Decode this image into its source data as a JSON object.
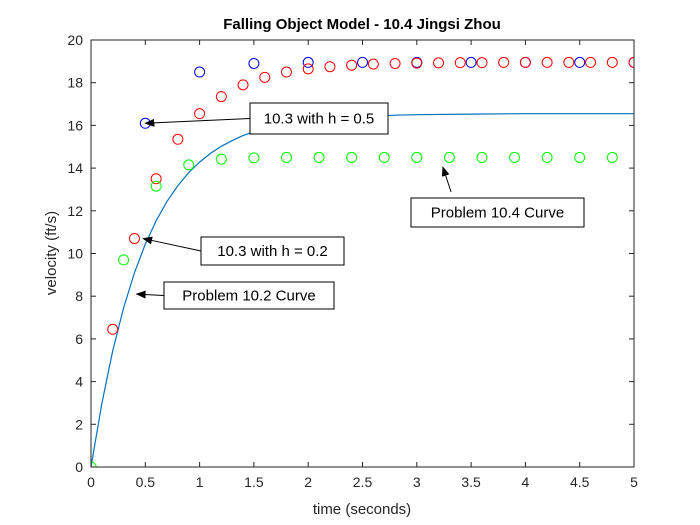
{
  "chart_data": {
    "type": "scatter",
    "title": "Falling Object Model - 10.4 Jingsi Zhou",
    "xlabel": "time (seconds)",
    "ylabel": "velocity (ft/s)",
    "xlim": [
      0,
      5
    ],
    "ylim": [
      0,
      20
    ],
    "xticks": [
      0,
      0.5,
      1,
      1.5,
      2,
      2.5,
      3,
      3.5,
      4,
      4.5,
      5
    ],
    "xtick_labels": [
      "0",
      "0.5",
      "1",
      "1.5",
      "2",
      "2.5",
      "3",
      "3.5",
      "4",
      "4.5",
      "5"
    ],
    "yticks": [
      0,
      2,
      4,
      6,
      8,
      10,
      12,
      14,
      16,
      18,
      20
    ],
    "ytick_labels": [
      "0",
      "2",
      "4",
      "6",
      "8",
      "10",
      "12",
      "14",
      "16",
      "18",
      "20"
    ],
    "grid": false,
    "series": [
      {
        "kind": "line",
        "color": "#0072BD",
        "x": [
          0,
          0.1,
          0.2,
          0.3,
          0.4,
          0.5,
          0.6,
          0.7,
          0.8,
          0.9,
          1.0,
          1.1,
          1.2,
          1.3,
          1.4,
          1.5,
          1.6,
          1.7,
          1.8,
          1.9,
          2.0,
          2.2,
          2.4,
          2.6,
          2.8,
          3.0,
          3.5,
          4.0,
          4.5,
          5.0
        ],
        "y": [
          0,
          2.99,
          5.44,
          7.45,
          9.09,
          10.44,
          11.54,
          12.44,
          13.18,
          13.79,
          14.28,
          14.69,
          15.02,
          15.29,
          15.52,
          15.7,
          15.85,
          15.97,
          16.07,
          16.15,
          16.22,
          16.32,
          16.39,
          16.44,
          16.48,
          16.5,
          16.53,
          16.55,
          16.55,
          16.55
        ]
      },
      {
        "kind": "markers",
        "color": "#0000FF",
        "x": [
          0.5,
          1.0,
          1.5,
          2.0,
          2.5,
          3.0,
          3.5,
          4.0,
          4.5,
          5.0
        ],
        "y": [
          16.1,
          18.5,
          18.9,
          18.95,
          18.95,
          18.95,
          18.95,
          18.95,
          18.95,
          18.95
        ]
      },
      {
        "kind": "markers",
        "color": "#FF0000",
        "x": [
          0.2,
          0.4,
          0.6,
          0.8,
          1.0,
          1.2,
          1.4,
          1.6,
          1.8,
          2.0,
          2.2,
          2.4,
          2.6,
          2.8,
          3.0,
          3.2,
          3.4,
          3.6,
          3.8,
          4.0,
          4.2,
          4.4,
          4.6,
          4.8,
          5.0
        ],
        "y": [
          6.45,
          10.7,
          13.5,
          15.35,
          16.55,
          17.35,
          17.9,
          18.25,
          18.5,
          18.65,
          18.75,
          18.82,
          18.87,
          18.9,
          18.92,
          18.93,
          18.94,
          18.94,
          18.95,
          18.95,
          18.95,
          18.95,
          18.95,
          18.95,
          18.95
        ]
      },
      {
        "kind": "markers",
        "color": "#00FF00",
        "x": [
          0,
          0.3,
          0.6,
          0.9,
          1.2,
          1.5,
          1.8,
          2.1,
          2.4,
          2.7,
          3.0,
          3.3,
          3.6,
          3.9,
          4.2,
          4.5,
          4.8
        ],
        "y": [
          0,
          9.7,
          13.15,
          14.15,
          14.42,
          14.48,
          14.5,
          14.5,
          14.5,
          14.5,
          14.5,
          14.5,
          14.5,
          14.5,
          14.5,
          14.5,
          14.5
        ]
      }
    ],
    "annotations": [
      {
        "text": "10.3 with h = 0.5",
        "target": [
          0.5,
          16.1
        ]
      },
      {
        "text": "10.3 with h = 0.2",
        "target": [
          0.48,
          10.7
        ]
      },
      {
        "text": "Problem 10.2 Curve",
        "target": [
          0.42,
          8.1
        ]
      },
      {
        "text": "Problem 10.4 Curve",
        "target": [
          3.24,
          14.05
        ]
      }
    ]
  }
}
